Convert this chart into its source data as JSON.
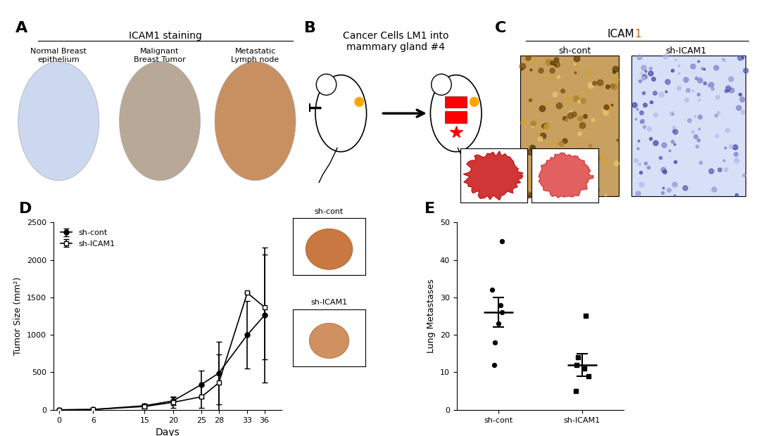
{
  "panel_labels": [
    "A",
    "B",
    "C",
    "D",
    "E"
  ],
  "panel_label_fontsize": 16,
  "panel_label_fontweight": "bold",
  "A_title": "ICAM1 staining",
  "A_subtitles": [
    "Normal Breast\nepithelium",
    "Malignant\nBreast Tumor",
    "Metastatic\nLymph node"
  ],
  "A_subtitle_fontsize": 9,
  "B_text_line1": "Cancer Cells LM1 into",
  "B_text_line2": "mammary gland #4",
  "B_text_fontsize": 10,
  "C_title_black": "ICAM",
  "C_title_orange": "1",
  "C_subtitles": [
    "sh-cont",
    "sh-ICAM1"
  ],
  "C_title_color": "#CC6600",
  "C_subtitle_fontsize": 9,
  "D_days": [
    0,
    6,
    15,
    20,
    25,
    28,
    33,
    36
  ],
  "D_shcont_mean": [
    0,
    5,
    55,
    120,
    340,
    490,
    1000,
    1260
  ],
  "D_shcont_err": [
    0,
    5,
    30,
    60,
    180,
    420,
    450,
    900
  ],
  "D_shicam1_mean": [
    0,
    5,
    45,
    100,
    175,
    360,
    1560,
    1370
  ],
  "D_shicam1_err": [
    0,
    5,
    25,
    70,
    150,
    380,
    0,
    700
  ],
  "D_ylabel": "Tumor Size (mm²)",
  "D_xlabel": "Days",
  "D_ylim": [
    0,
    2500
  ],
  "D_yticks": [
    0,
    500,
    1000,
    1500,
    2000,
    2500
  ],
  "D_legend": [
    "sh-cont",
    "sh-ICAM1"
  ],
  "E_ylabel": "Lung Metastases",
  "E_ylim": [
    0,
    50
  ],
  "E_yticks": [
    0,
    10,
    20,
    30,
    40,
    50
  ],
  "E_shcont_points": [
    45,
    32,
    28,
    26,
    23,
    18,
    12
  ],
  "E_shcont_mean": 26,
  "E_shcont_sem": 4,
  "E_shicam1_points": [
    25,
    14,
    12,
    11,
    9,
    5
  ],
  "E_shicam1_mean": 12,
  "E_shicam1_sem": 3,
  "E_xticks": [
    "sh-cont",
    "sh-ICAM1"
  ],
  "bg_color": "#ffffff",
  "text_color": "#000000",
  "fontsize": 9,
  "axis_linewidth": 1.0
}
